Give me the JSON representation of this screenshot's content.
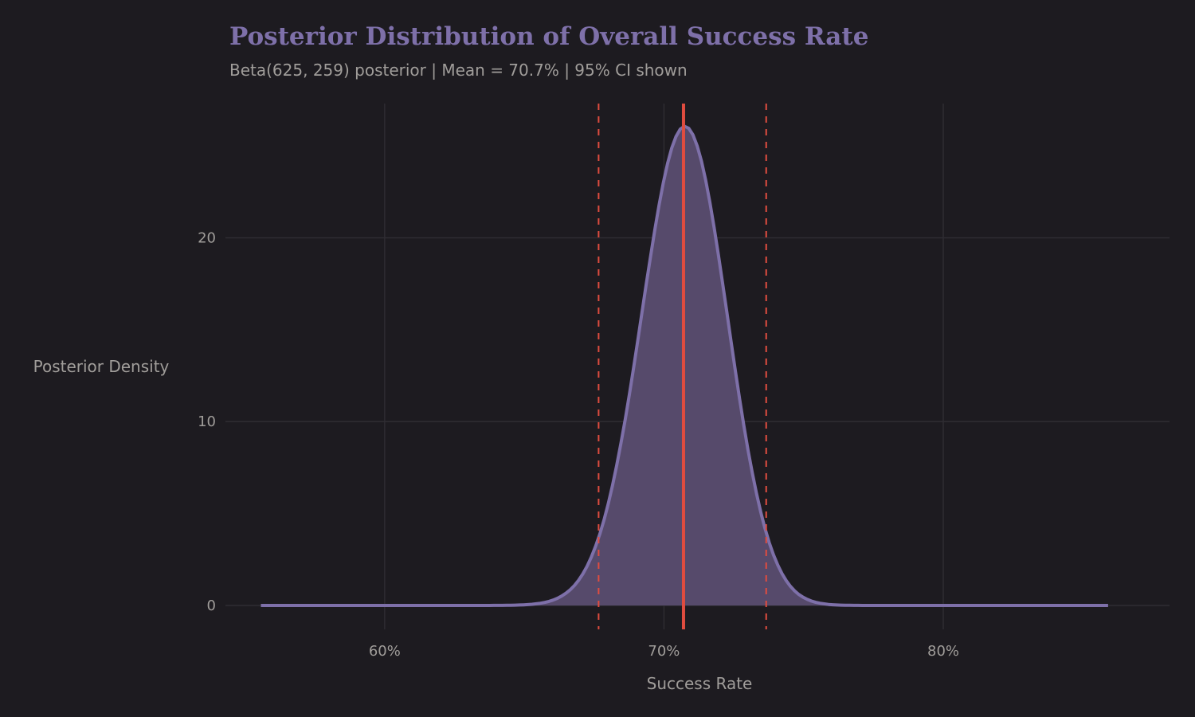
{
  "chart_data": {
    "type": "area",
    "title": "Posterior Distribution of Overall Success Rate",
    "subtitle": "Beta(625, 259) posterior | Mean = 70.7% | 95% CI shown",
    "xlabel": "Success Rate",
    "ylabel": "Posterior Density",
    "distribution": {
      "name": "Beta",
      "alpha": 625,
      "beta": 259
    },
    "x_range": [
      0.5557,
      0.859
    ],
    "xlim": [
      0.543,
      0.881
    ],
    "ylim": [
      -1.3,
      27.3
    ],
    "x_ticks": [
      {
        "value": 0.6,
        "label": "60%"
      },
      {
        "value": 0.7,
        "label": "70%"
      },
      {
        "value": 0.8,
        "label": "80%"
      }
    ],
    "y_ticks": [
      {
        "value": 0,
        "label": "0"
      },
      {
        "value": 10,
        "label": "10"
      },
      {
        "value": 20,
        "label": "20"
      }
    ],
    "mean": 0.707,
    "ci_95": [
      0.6766,
      0.7366
    ],
    "grid": true,
    "colors": {
      "background": "#1d1b20",
      "curve": "#7e70a9",
      "fill": "#564a6b",
      "mean_line": "#e04c3f",
      "ci_lines": "#e04c3f",
      "grid": "#2e2c32",
      "text": "#a09d9a"
    }
  }
}
